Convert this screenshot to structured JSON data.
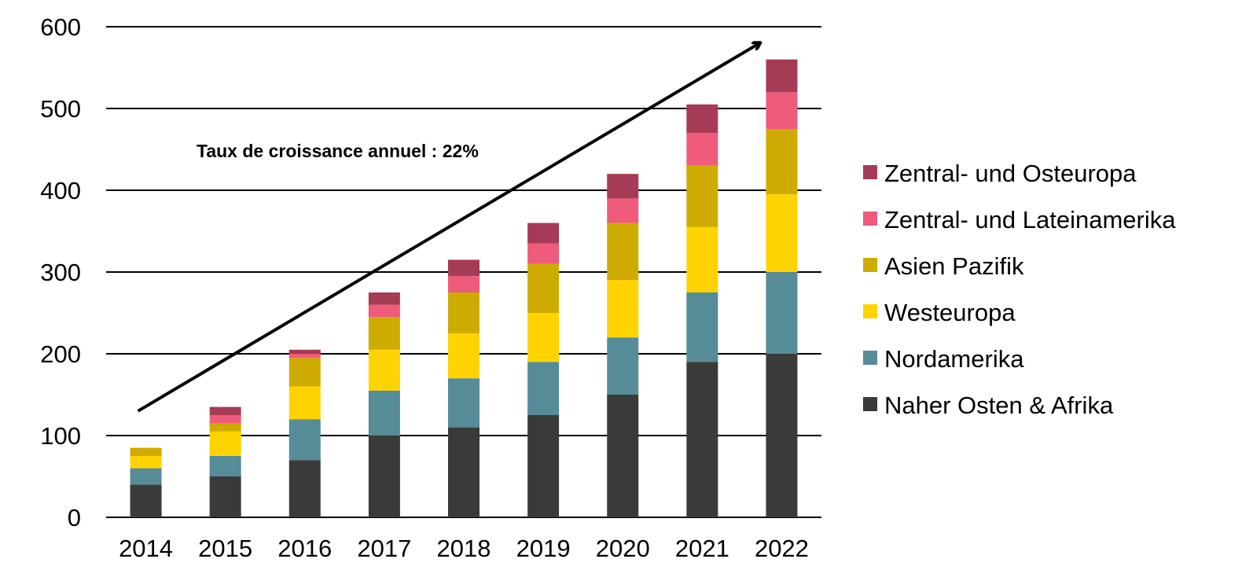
{
  "chart_data": {
    "type": "bar",
    "stacked": true,
    "categories": [
      "2014",
      "2015",
      "2016",
      "2017",
      "2018",
      "2019",
      "2020",
      "2021",
      "2022"
    ],
    "series": [
      {
        "name": "Naher Osten & Afrika",
        "color": "#3a3b39",
        "values": [
          40,
          50,
          70,
          100,
          110,
          125,
          150,
          190,
          200
        ]
      },
      {
        "name": "Nordamerika",
        "color": "#568b98",
        "values": [
          20,
          25,
          50,
          55,
          60,
          65,
          70,
          85,
          100
        ]
      },
      {
        "name": "Westeuropa",
        "color": "#ffd300",
        "values": [
          15,
          30,
          40,
          50,
          55,
          60,
          70,
          80,
          95
        ]
      },
      {
        "name": "Asien Pazifik",
        "color": "#ceab00",
        "values": [
          10,
          10,
          35,
          40,
          50,
          60,
          70,
          75,
          80
        ]
      },
      {
        "name": "Zentral- und Lateinamerika",
        "color": "#ef5b7b",
        "values": [
          0,
          10,
          5,
          15,
          20,
          25,
          30,
          40,
          45
        ]
      },
      {
        "name": "Zentral- und Osteuropa",
        "color": "#a63b55",
        "values": [
          0,
          10,
          5,
          15,
          20,
          25,
          30,
          35,
          40
        ]
      }
    ],
    "y_ticks": [
      "0",
      "100",
      "200",
      "300",
      "400",
      "500",
      "600"
    ],
    "ylim": [
      0,
      600
    ],
    "grid": true,
    "legend_position": "right",
    "annotation": "Taux de croissance annuel : 22%",
    "trend_arrow": {
      "from": [
        "2014",
        130
      ],
      "to": [
        "2022",
        580
      ]
    }
  }
}
